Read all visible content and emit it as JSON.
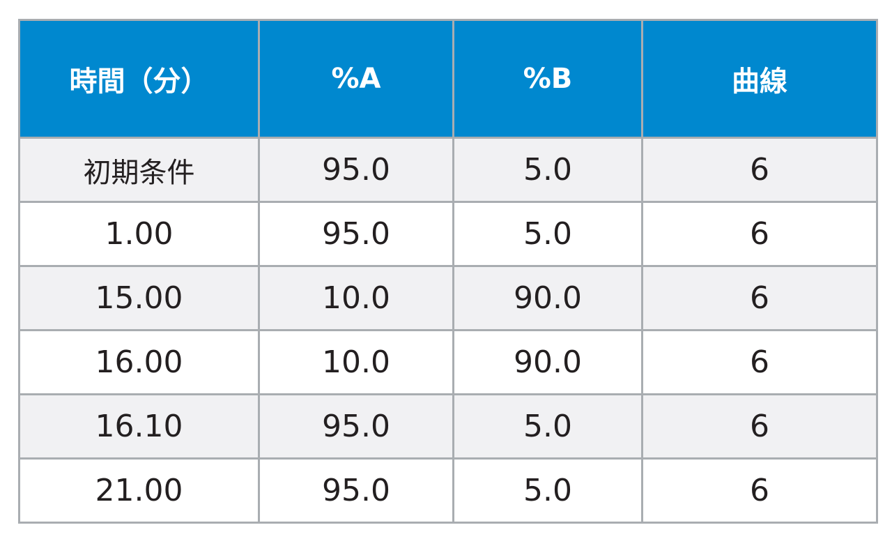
{
  "table": {
    "headers": [
      "時間（分）",
      "%A",
      "%B",
      "曲線"
    ],
    "rows": [
      [
        "初期条件",
        "95.0",
        "5.0",
        "6"
      ],
      [
        "1.00",
        "95.0",
        "5.0",
        "6"
      ],
      [
        "15.00",
        "10.0",
        "90.0",
        "6"
      ],
      [
        "16.00",
        "10.0",
        "90.0",
        "6"
      ],
      [
        "16.10",
        "95.0",
        "5.0",
        "6"
      ],
      [
        "21.00",
        "95.0",
        "5.0",
        "6"
      ]
    ],
    "colors": {
      "header_bg": "#0088cf",
      "header_text": "#ffffff",
      "row_alt_bg": "#f1f1f3",
      "row_bg": "#ffffff",
      "border": "#a9adb1",
      "text": "#231f20"
    }
  }
}
